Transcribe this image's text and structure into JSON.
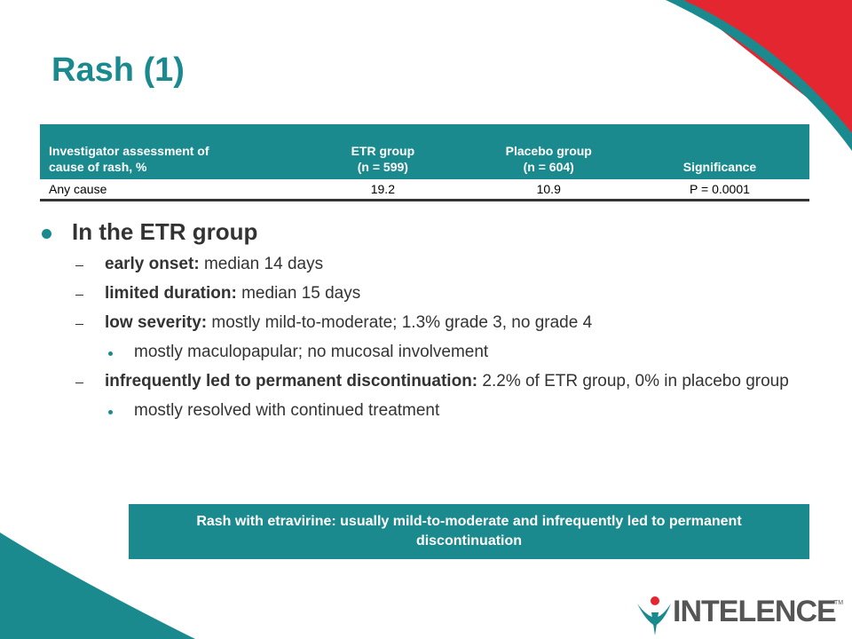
{
  "title": "Rash (1)",
  "table": {
    "headers": [
      [
        "Investigator assessment of",
        "cause of rash, %"
      ],
      [
        "ETR group",
        "(n = 599)"
      ],
      [
        "Placebo group",
        "(n = 604)"
      ],
      [
        "Significance"
      ]
    ],
    "rows": [
      [
        "Any cause",
        "19.2",
        "10.9",
        "P = 0.0001"
      ]
    ]
  },
  "bullets": {
    "heading": "In the ETR group",
    "items": [
      {
        "bold": "early onset:",
        "text": "median 14 days"
      },
      {
        "bold": "limited duration:",
        "text": "median 15 days"
      },
      {
        "bold": "low severity:",
        "text": "mostly mild-to-moderate; 1.3% grade 3, no grade 4",
        "sub": [
          "mostly maculopapular; no mucosal involvement"
        ]
      },
      {
        "bold": "infrequently led to permanent discontinuation:",
        "text": "2.2% of ETR group, 0% in placebo group",
        "sub": [
          "mostly resolved with continued treatment"
        ]
      }
    ]
  },
  "callout": "Rash with etravirine: usually mild-to-moderate and infrequently led to permanent discontinuation",
  "logo": {
    "name": "INTELENCE",
    "mark": "TM"
  }
}
